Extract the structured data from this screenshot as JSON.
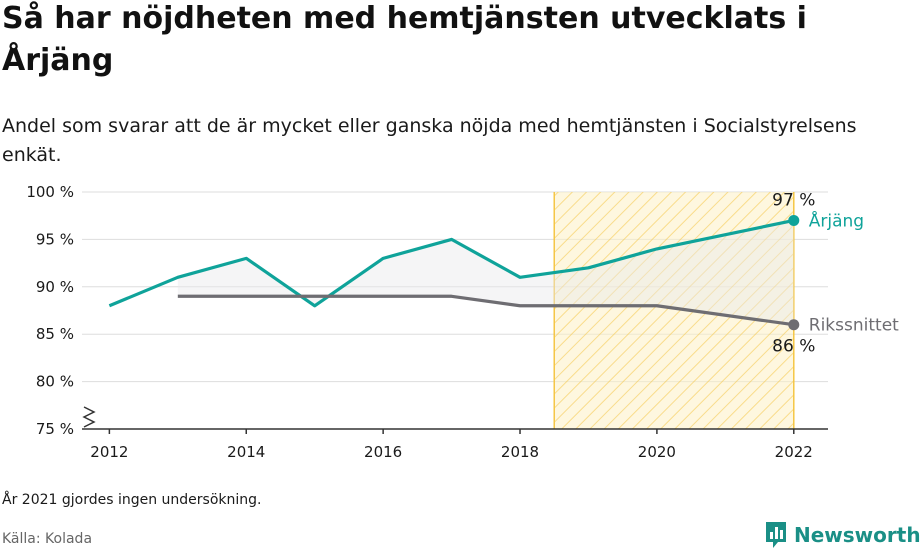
{
  "header": {
    "title": "Så har nöjdheten med hemtjänsten utvecklats i Årjäng",
    "subtitle": "Andel som svarar att de är mycket eller ganska nöjda med hemtjänsten i Socialstyrelsens enkät."
  },
  "footer": {
    "footnote": "År 2021 gjordes ingen undersökning.",
    "source": "Källa: Kolada",
    "brand": "Newsworthy",
    "brand_icon": "bar-chart-logo-icon"
  },
  "colors": {
    "arjang": "#0fa39a",
    "riket": "#6e6d72",
    "highlight": "#f5c645",
    "grid": "#dddddd"
  },
  "chart_data": {
    "type": "line",
    "x": [
      2012,
      2013,
      2014,
      2015,
      2016,
      2017,
      2018,
      2019,
      2020,
      2022
    ],
    "series": [
      {
        "name": "Årjäng",
        "values": [
          88,
          91,
          93,
          88,
          93,
          95,
          91,
          92,
          94,
          97
        ],
        "color": "#0fa39a"
      },
      {
        "name": "Rikssnittet",
        "values": [
          null,
          89,
          89,
          89,
          89,
          89,
          88,
          88,
          88,
          86
        ],
        "color": "#6e6d72"
      }
    ],
    "end_labels": {
      "Årjäng": "97 %",
      "Rikssnittet": "86 %"
    },
    "xticks": [
      "2012",
      "2014",
      "2016",
      "2018",
      "2020",
      "2022"
    ],
    "yticks": [
      "75 %",
      "80 %",
      "85 %",
      "90 %",
      "95 %",
      "100 %"
    ],
    "ylim": [
      75,
      100
    ],
    "xlim": [
      2011.6,
      2022.5
    ],
    "highlight_range": [
      2018.5,
      2022
    ],
    "gap_year": 2021,
    "y_axis_break": true,
    "grid": true
  }
}
